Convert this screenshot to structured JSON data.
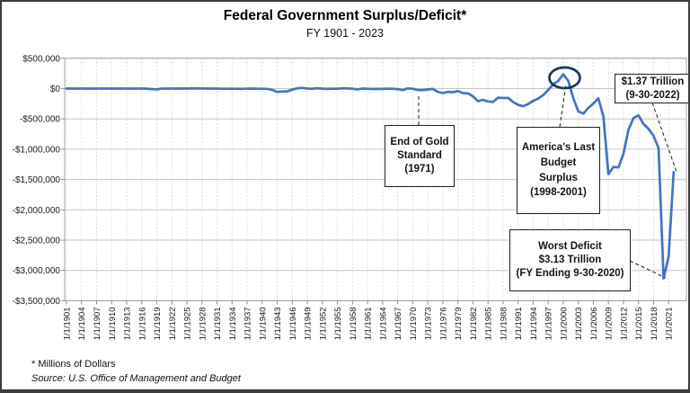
{
  "header": {
    "title": "Federal Government Surplus/Deficit*",
    "subtitle": "FY 1901 - 2023"
  },
  "footer": {
    "note": "* Millions of Dollars",
    "source": "Source: U.S. Office of Management and Budget"
  },
  "annotations": {
    "gold_standard": {
      "lines": [
        "End of Gold",
        "Standard",
        "(1971)"
      ]
    },
    "america_last_surplus": {
      "lines": [
        "America's Last",
        "Budget",
        "Surplus",
        "(1998-2001)"
      ]
    },
    "trillion_137": {
      "lines": [
        "$1.37 Trillion",
        "(9-30-2022)"
      ]
    },
    "worst_deficit": {
      "lines": [
        "Worst Deficit",
        "$3.13 Trillion",
        "(FY Ending 9-30-2020)"
      ]
    }
  },
  "chart_data": {
    "type": "line",
    "title": "Federal Government Surplus/Deficit*",
    "subtitle": "FY 1901 - 2023",
    "unit": "millions of dollars",
    "series_name": "Federal surplus/deficit",
    "line_color": "#4472C4",
    "highlight_ellipse_color": "#17375E",
    "grid": true,
    "ylim": [
      -3500000,
      500000
    ],
    "ytick_labels": [
      "$500,000",
      "$0",
      "-$500,000",
      "-$1,000,000",
      "-$1,500,000",
      "-$2,000,000",
      "-$2,500,000",
      "-$3,000,000",
      "-$3,500,000"
    ],
    "xtick_labels": [
      "1/1/1901",
      "1/1/1904",
      "1/1/1907",
      "1/1/1910",
      "1/1/1913",
      "1/1/1916",
      "1/1/1919",
      "1/1/1922",
      "1/1/1925",
      "1/1/1928",
      "1/1/1931",
      "1/1/1934",
      "1/1/1937",
      "1/1/1940",
      "1/1/1943",
      "1/1/1946",
      "1/1/1949",
      "1/1/1952",
      "1/1/1955",
      "1/1/1958",
      "1/1/1961",
      "1/1/1964",
      "1/1/1967",
      "1/1/1970",
      "1/1/1973",
      "1/1/1976",
      "1/1/1979",
      "1/1/1982",
      "1/1/1985",
      "1/1/1988",
      "1/1/1991",
      "1/1/1994",
      "1/1/1997",
      "1/1/2000",
      "1/1/2003",
      "1/1/2006",
      "1/1/2009",
      "1/1/2012",
      "1/1/2015",
      "1/1/2018",
      "1/1/2021"
    ],
    "x": [
      1901,
      1902,
      1903,
      1904,
      1905,
      1906,
      1907,
      1908,
      1909,
      1910,
      1911,
      1912,
      1913,
      1914,
      1915,
      1916,
      1917,
      1918,
      1919,
      1920,
      1921,
      1922,
      1923,
      1924,
      1925,
      1926,
      1927,
      1928,
      1929,
      1930,
      1931,
      1932,
      1933,
      1934,
      1935,
      1936,
      1937,
      1938,
      1939,
      1940,
      1941,
      1942,
      1943,
      1944,
      1945,
      1946,
      1947,
      1948,
      1949,
      1950,
      1951,
      1952,
      1953,
      1954,
      1955,
      1956,
      1957,
      1958,
      1959,
      1960,
      1961,
      1962,
      1963,
      1964,
      1965,
      1966,
      1967,
      1968,
      1969,
      1970,
      1971,
      1972,
      1973,
      1974,
      1975,
      1976,
      1977,
      1978,
      1979,
      1980,
      1981,
      1982,
      1983,
      1984,
      1985,
      1986,
      1987,
      1988,
      1989,
      1990,
      1991,
      1992,
      1993,
      1994,
      1995,
      1996,
      1997,
      1998,
      1999,
      2000,
      2001,
      2002,
      2003,
      2004,
      2005,
      2006,
      2007,
      2008,
      2009,
      2010,
      2011,
      2012,
      2013,
      2014,
      2015,
      2016,
      2017,
      2018,
      2019,
      2020,
      2021,
      2022
    ],
    "values": [
      63,
      77,
      45,
      -43,
      -23,
      25,
      87,
      -57,
      -89,
      -18,
      11,
      3,
      0,
      0,
      -63,
      48,
      -853,
      -9032,
      -13363,
      291,
      509,
      736,
      713,
      963,
      717,
      865,
      1155,
      939,
      734,
      738,
      -462,
      -2735,
      -2602,
      -3586,
      -2803,
      -4304,
      -2193,
      -89,
      -2846,
      -2920,
      -4941,
      -20503,
      -54554,
      -47557,
      -47553,
      -15936,
      4018,
      11796,
      580,
      -3119,
      6102,
      -1519,
      -6493,
      -1154,
      -2993,
      3947,
      3412,
      -2769,
      -12849,
      301,
      -3335,
      -7146,
      -4756,
      -5915,
      -1411,
      -3698,
      -8643,
      -25161,
      3242,
      -2842,
      -23033,
      -23373,
      -14908,
      -6135,
      -53242,
      -73732,
      -53659,
      -59185,
      -40726,
      -73830,
      -78968,
      -127977,
      -207802,
      -185367,
      -212308,
      -221227,
      -149730,
      -155178,
      -152639,
      -221036,
      -269238,
      -290321,
      -255051,
      -203186,
      -163952,
      -107431,
      -21884,
      69270,
      125610,
      236241,
      128236,
      -157758,
      -377585,
      -412727,
      -318346,
      -248181,
      -160701,
      -458553,
      -1412688,
      -1294373,
      -1299599,
      -1076573,
      -679775,
      -484793,
      -441960,
      -584651,
      -665446,
      -779137,
      -983591,
      -3131917,
      -2775535,
      -1375389
    ]
  }
}
